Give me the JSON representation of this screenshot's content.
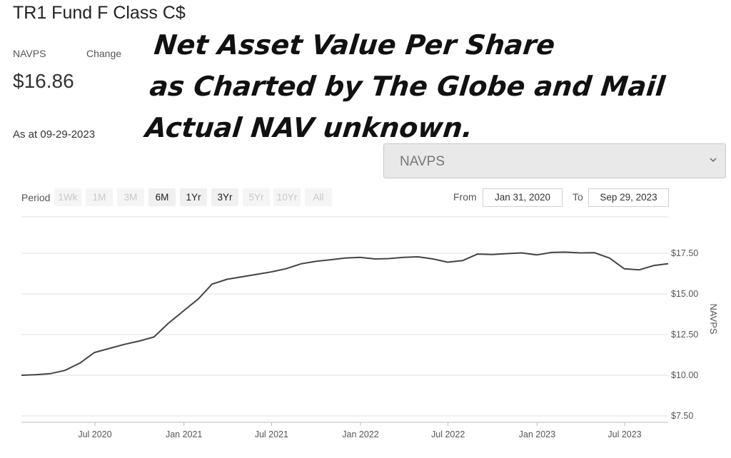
{
  "fund": {
    "title": "TR1 Fund F Class C$",
    "navps_label": "NAVPS",
    "change_label": "Change",
    "navps_value": "$16.86",
    "as_at": "As at 09-29-2023"
  },
  "overlay": {
    "line1": "Net Asset Value Per Share",
    "line2": "as Charted by The Globe and Mail",
    "line3": "Actual NAV unknown."
  },
  "metric_select": {
    "value": "NAVPS"
  },
  "period": {
    "label": "Period",
    "buttons": [
      {
        "label": "1Wk",
        "enabled": false
      },
      {
        "label": "1M",
        "enabled": false
      },
      {
        "label": "3M",
        "enabled": false
      },
      {
        "label": "6M",
        "enabled": true
      },
      {
        "label": "1Yr",
        "enabled": true
      },
      {
        "label": "3Yr",
        "enabled": true
      },
      {
        "label": "5Yr",
        "enabled": false
      },
      {
        "label": "10Yr",
        "enabled": false
      },
      {
        "label": "All",
        "enabled": false
      }
    ]
  },
  "range": {
    "from_label": "From",
    "from_value": "Jan 31, 2020",
    "to_label": "To",
    "to_value": "Sep 29, 2023"
  },
  "colors": {
    "line": "#444444",
    "grid": "#e0e0e0",
    "axis_text": "#555555"
  },
  "chart_data": {
    "type": "line",
    "ylabel": "NAVPS",
    "ylim": [
      7.5,
      17.5
    ],
    "y_ticks": [
      "$7.50",
      "$10.00",
      "$12.50",
      "$15.00",
      "$17.50"
    ],
    "y_tick_values": [
      7.5,
      10.0,
      12.5,
      15.0,
      17.5
    ],
    "x_ticks": [
      "Jul 2020",
      "Jan 2021",
      "Jul 2021",
      "Jan 2022",
      "Jul 2022",
      "Jan 2023",
      "Jul 2023"
    ],
    "x_tick_dates": [
      "2020-07-01",
      "2021-01-01",
      "2021-07-01",
      "2022-01-01",
      "2022-07-01",
      "2023-01-01",
      "2023-07-01"
    ],
    "x_range": [
      "2020-01-31",
      "2023-09-29"
    ],
    "grid": true,
    "series": [
      {
        "points": [
          [
            "2020-01-31",
            10.0
          ],
          [
            "2020-02-29",
            10.03
          ],
          [
            "2020-03-31",
            10.1
          ],
          [
            "2020-04-30",
            10.3
          ],
          [
            "2020-05-31",
            10.75
          ],
          [
            "2020-06-30",
            11.4
          ],
          [
            "2020-07-31",
            11.65
          ],
          [
            "2020-08-31",
            11.9
          ],
          [
            "2020-09-30",
            12.1
          ],
          [
            "2020-10-31",
            12.35
          ],
          [
            "2020-11-30",
            13.2
          ],
          [
            "2020-12-31",
            13.95
          ],
          [
            "2021-01-31",
            14.7
          ],
          [
            "2021-02-28",
            15.6
          ],
          [
            "2021-03-31",
            15.9
          ],
          [
            "2021-04-30",
            16.05
          ],
          [
            "2021-05-31",
            16.2
          ],
          [
            "2021-06-30",
            16.35
          ],
          [
            "2021-07-31",
            16.55
          ],
          [
            "2021-08-31",
            16.85
          ],
          [
            "2021-09-30",
            17.0
          ],
          [
            "2021-10-31",
            17.1
          ],
          [
            "2021-11-30",
            17.2
          ],
          [
            "2021-12-31",
            17.25
          ],
          [
            "2022-01-31",
            17.15
          ],
          [
            "2022-02-28",
            17.17
          ],
          [
            "2022-03-31",
            17.25
          ],
          [
            "2022-04-30",
            17.28
          ],
          [
            "2022-05-31",
            17.15
          ],
          [
            "2022-06-30",
            16.95
          ],
          [
            "2022-07-31",
            17.05
          ],
          [
            "2022-08-31",
            17.45
          ],
          [
            "2022-09-30",
            17.42
          ],
          [
            "2022-10-31",
            17.48
          ],
          [
            "2022-11-30",
            17.52
          ],
          [
            "2022-12-31",
            17.4
          ],
          [
            "2023-01-31",
            17.55
          ],
          [
            "2023-02-28",
            17.57
          ],
          [
            "2023-03-31",
            17.52
          ],
          [
            "2023-04-30",
            17.53
          ],
          [
            "2023-05-31",
            17.2
          ],
          [
            "2023-06-30",
            16.55
          ],
          [
            "2023-07-31",
            16.48
          ],
          [
            "2023-08-31",
            16.75
          ],
          [
            "2023-09-29",
            16.86
          ]
        ]
      }
    ]
  }
}
